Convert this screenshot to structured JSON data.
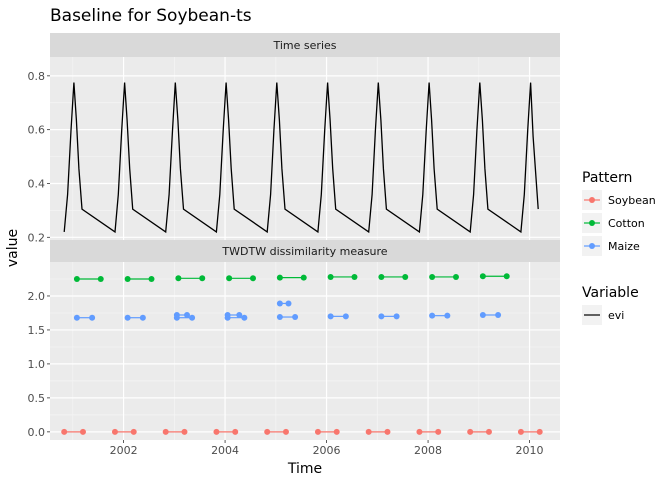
{
  "chart_data": {
    "title": "Baseline for Soybean-ts",
    "xlabel": "Time",
    "ylabel": "value",
    "x_ticks": [
      "2002",
      "2004",
      "2006",
      "2008",
      "2010"
    ],
    "panels": [
      {
        "strip": "Time series",
        "type": "line",
        "ylim": [
          0.19,
          0.87
        ],
        "y_ticks": [
          0.2,
          0.4,
          0.6,
          0.8
        ],
        "series": [
          {
            "name": "evi",
            "color": "#000000",
            "cycle_starts": [
              2000.83,
              2001.83,
              2002.83,
              2003.83,
              2004.83,
              2005.83,
              2006.83,
              2007.83,
              2008.83,
              2009.83
            ],
            "cycle_shape": {
              "base": 0.22,
              "peak": 0.775,
              "knee": 0.305,
              "peak_offset_years": 0.19,
              "knee_offset_years": 0.35,
              "cycle_length_years": 1.0
            },
            "end_x": 2010.17,
            "end_y": 0.305
          }
        ]
      },
      {
        "strip": "TWDTW dissimilarity measure",
        "type": "segments",
        "ylim": [
          -0.12,
          2.5
        ],
        "y_ticks": [
          0.0,
          0.5,
          1.0,
          1.5,
          2.0
        ],
        "series": [
          {
            "name": "Soybean",
            "color": "#F8766D",
            "segments": [
              {
                "x1": 2000.83,
                "x2": 2001.2,
                "y": 0.0
              },
              {
                "x1": 2001.83,
                "x2": 2002.2,
                "y": 0.0
              },
              {
                "x1": 2002.83,
                "x2": 2003.2,
                "y": 0.0
              },
              {
                "x1": 2003.83,
                "x2": 2004.2,
                "y": 0.0
              },
              {
                "x1": 2004.83,
                "x2": 2005.2,
                "y": 0.0
              },
              {
                "x1": 2005.83,
                "x2": 2006.2,
                "y": 0.0
              },
              {
                "x1": 2006.83,
                "x2": 2007.2,
                "y": 0.0
              },
              {
                "x1": 2007.83,
                "x2": 2008.2,
                "y": 0.0
              },
              {
                "x1": 2008.83,
                "x2": 2009.2,
                "y": 0.0
              },
              {
                "x1": 2009.83,
                "x2": 2010.2,
                "y": 0.0
              }
            ]
          },
          {
            "name": "Cotton",
            "color": "#00BA38",
            "segments": [
              {
                "x1": 2001.08,
                "x2": 2001.55,
                "y": 2.25
              },
              {
                "x1": 2002.08,
                "x2": 2002.55,
                "y": 2.25
              },
              {
                "x1": 2003.08,
                "x2": 2003.55,
                "y": 2.26
              },
              {
                "x1": 2004.08,
                "x2": 2004.55,
                "y": 2.26
              },
              {
                "x1": 2005.08,
                "x2": 2005.55,
                "y": 2.27
              },
              {
                "x1": 2006.08,
                "x2": 2006.55,
                "y": 2.28
              },
              {
                "x1": 2007.08,
                "x2": 2007.55,
                "y": 2.28
              },
              {
                "x1": 2008.08,
                "x2": 2008.55,
                "y": 2.28
              },
              {
                "x1": 2009.08,
                "x2": 2009.55,
                "y": 2.29
              }
            ]
          },
          {
            "name": "Maize",
            "color": "#619CFF",
            "segments": [
              {
                "x1": 2001.08,
                "x2": 2001.38,
                "y": 1.68
              },
              {
                "x1": 2002.08,
                "x2": 2002.38,
                "y": 1.68
              },
              {
                "x1": 2003.05,
                "x2": 2003.35,
                "y": 1.68
              },
              {
                "x1": 2003.05,
                "x2": 2003.25,
                "y": 1.72
              },
              {
                "x1": 2004.05,
                "x2": 2004.38,
                "y": 1.68
              },
              {
                "x1": 2004.05,
                "x2": 2004.28,
                "y": 1.72
              },
              {
                "x1": 2005.08,
                "x2": 2005.38,
                "y": 1.69
              },
              {
                "x1": 2005.08,
                "x2": 2005.25,
                "y": 1.89
              },
              {
                "x1": 2006.08,
                "x2": 2006.38,
                "y": 1.7
              },
              {
                "x1": 2007.08,
                "x2": 2007.38,
                "y": 1.7
              },
              {
                "x1": 2008.08,
                "x2": 2008.38,
                "y": 1.71
              },
              {
                "x1": 2009.08,
                "x2": 2009.38,
                "y": 1.72
              }
            ]
          }
        ]
      }
    ],
    "legends": [
      {
        "title": "Pattern",
        "entries": [
          {
            "label": "Soybean",
            "color": "#F8766D"
          },
          {
            "label": "Cotton",
            "color": "#00BA38"
          },
          {
            "label": "Maize",
            "color": "#619CFF"
          }
        ]
      },
      {
        "title": "Variable",
        "entries": [
          {
            "label": "evi",
            "color": "#000000"
          }
        ]
      }
    ],
    "xlim": [
      2000.55,
      2010.6
    ],
    "grid": true,
    "legend_position": "right"
  }
}
